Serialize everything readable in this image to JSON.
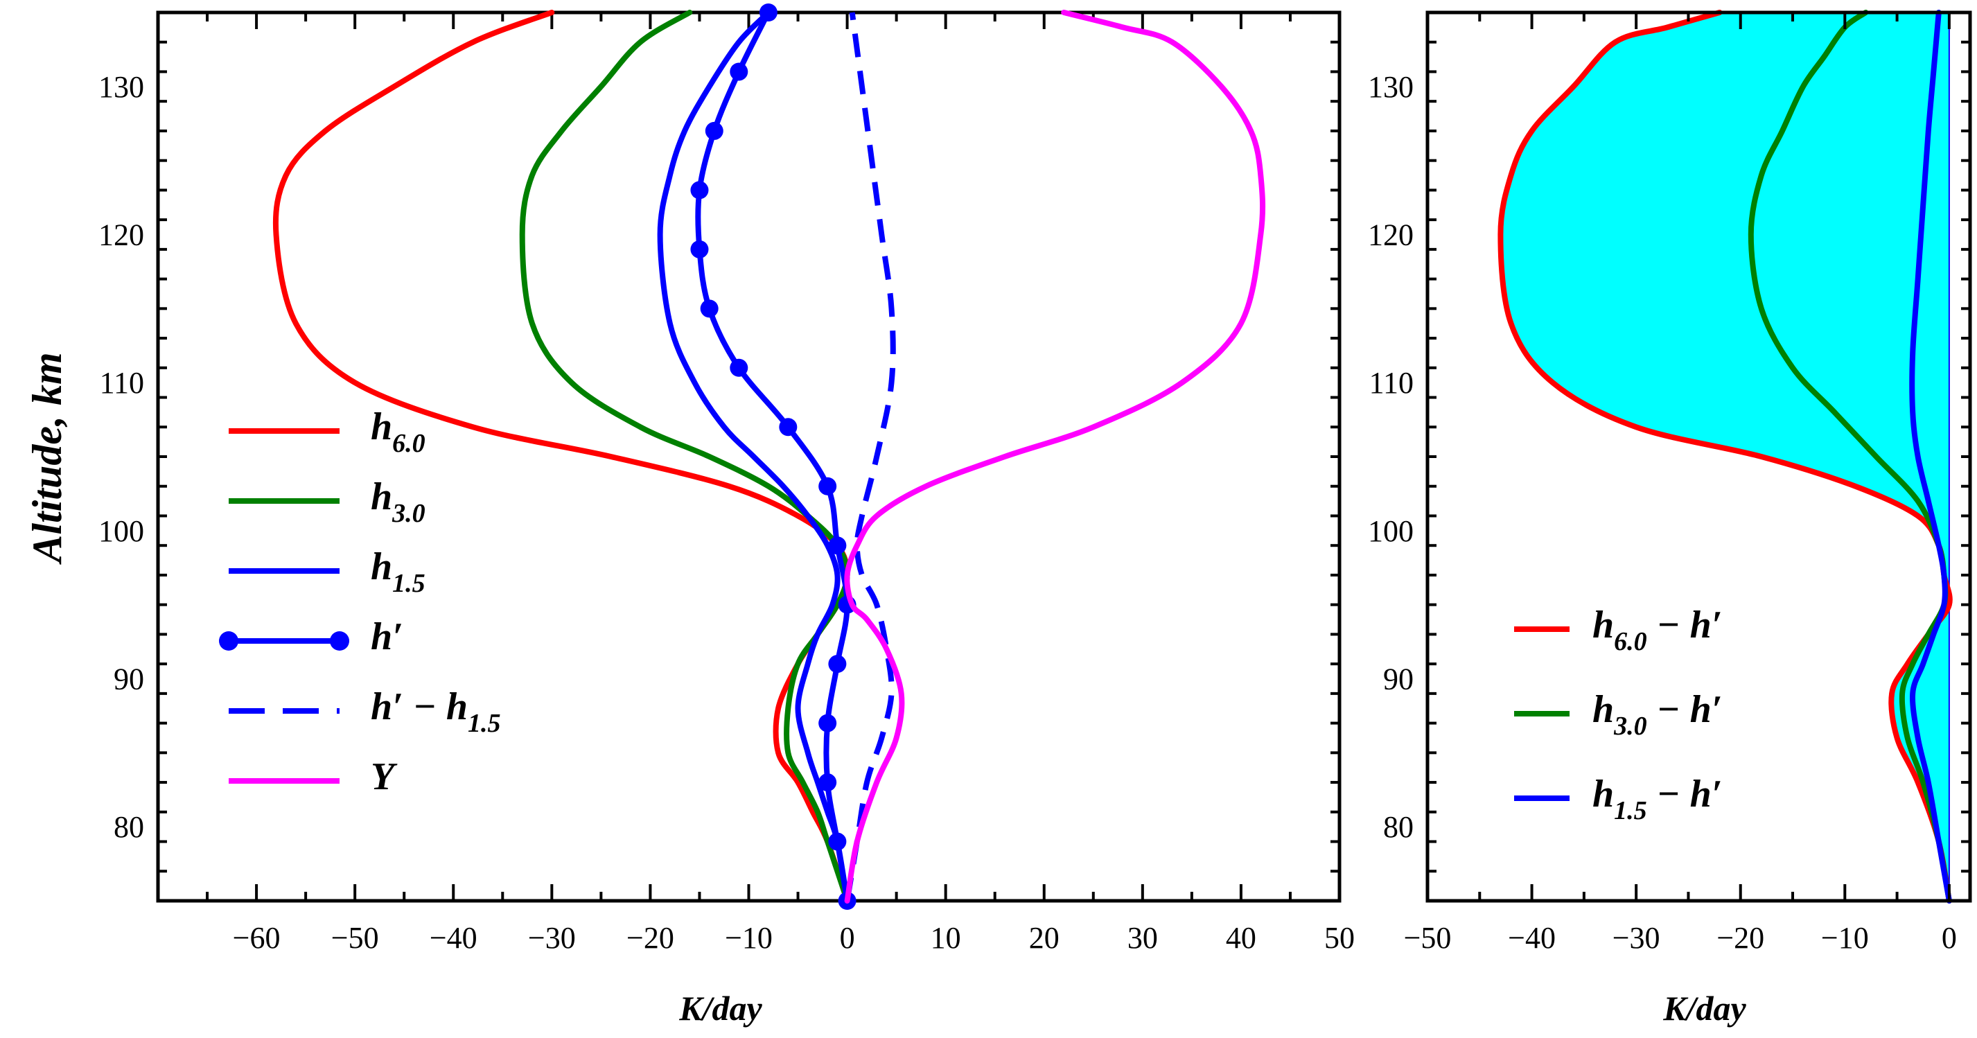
{
  "chart_data": [
    {
      "type": "line",
      "ylabel": "Altitude, km",
      "xlabel": "K/day",
      "xlim": [
        -70,
        50
      ],
      "ylim": [
        75,
        135
      ],
      "xticks": [
        -60,
        -50,
        -40,
        -30,
        -20,
        -10,
        0,
        10,
        20,
        30,
        40,
        50
      ],
      "yticks": [
        80,
        90,
        100,
        110,
        120,
        130
      ],
      "legend_position": "middle-left",
      "series": [
        {
          "name": "h",
          "sub": "6.0",
          "color": "#ff0000",
          "style": "solid",
          "x": [
            0,
            -2,
            -3.5,
            -5,
            -7,
            -7,
            -5,
            -3,
            -1,
            0,
            -1,
            -5,
            -12,
            -24,
            -38,
            -50,
            -56,
            -58,
            -57,
            -53,
            -46,
            -38,
            -30
          ],
          "y": [
            75,
            79,
            81,
            83,
            85,
            88,
            91,
            93,
            95,
            97,
            99,
            101,
            103,
            105,
            107,
            110,
            114,
            120,
            124,
            127,
            130,
            133,
            135
          ]
        },
        {
          "name": "h",
          "sub": "3.0",
          "color": "#008000",
          "style": "solid",
          "x": [
            0,
            -2,
            -3,
            -4.5,
            -6,
            -6,
            -5,
            -3,
            -1,
            0,
            -1,
            -4,
            -8,
            -14,
            -21,
            -28,
            -32,
            -33,
            -32,
            -29,
            -25,
            -21,
            -16
          ],
          "y": [
            75,
            79,
            81,
            83,
            85,
            88,
            91,
            93,
            95,
            97,
            99,
            101,
            103,
            105,
            107,
            110,
            114,
            120,
            124,
            127,
            130,
            133,
            135
          ]
        },
        {
          "name": "h",
          "sub": "1.5",
          "color": "#0000ff",
          "style": "solid",
          "x": [
            0,
            -1,
            -2,
            -3,
            -4,
            -5,
            -4,
            -3,
            -1.5,
            -1,
            -2,
            -4,
            -6.5,
            -9.5,
            -12.5,
            -15.5,
            -18,
            -19,
            -18,
            -16.5,
            -14,
            -11,
            -8
          ],
          "y": [
            75,
            79,
            81,
            83,
            85,
            88,
            91,
            93,
            95,
            97,
            99,
            101,
            103,
            105,
            107,
            110,
            114,
            120,
            124,
            127,
            130,
            133,
            135
          ]
        },
        {
          "name": "h′",
          "sub": "",
          "color": "#0000ff",
          "style": "markers",
          "x": [
            0,
            -1,
            -2,
            -2,
            -1,
            0,
            -1,
            -2,
            -6,
            -11,
            -14,
            -15,
            -15,
            -13.5,
            -11,
            -8
          ],
          "y": [
            75,
            79,
            83,
            87,
            91,
            95,
            99,
            103,
            107,
            111,
            115,
            119,
            123,
            127,
            131,
            135
          ]
        },
        {
          "name": "h′ − h",
          "sub": "1.5",
          "color": "#0000ff",
          "style": "dashed",
          "x": [
            0,
            1,
            2,
            3.5,
            4.5,
            4,
            3,
            1.5,
            1,
            1.5,
            3,
            4.5,
            4.5,
            3.5,
            2.5,
            1.5,
            0.5
          ],
          "y": [
            75,
            79,
            83,
            86,
            89,
            92,
            95,
            97,
            99,
            101,
            105,
            110,
            115,
            120,
            125,
            130,
            135
          ]
        },
        {
          "name": "Y",
          "sub": "",
          "color": "#ff00ff",
          "style": "solid",
          "x": [
            0,
            1,
            3,
            5,
            5.5,
            4,
            2,
            0.5,
            0,
            1,
            3,
            8,
            16,
            25,
            34,
            40,
            42,
            42,
            41,
            38,
            33,
            28,
            22
          ],
          "y": [
            75,
            79,
            83,
            86,
            89,
            92,
            94,
            95,
            97,
            99,
            101,
            103,
            105,
            107,
            110,
            114,
            120,
            124,
            127,
            130,
            133,
            134,
            135
          ]
        }
      ]
    },
    {
      "type": "area",
      "xlabel": "K/day",
      "xlim": [
        -50,
        2
      ],
      "ylim": [
        75,
        135
      ],
      "xticks": [
        -50,
        -40,
        -30,
        -20,
        -10,
        0
      ],
      "yticks": [
        80,
        90,
        100,
        110,
        120,
        130
      ],
      "legend_position": "bottom-left",
      "fill_color": "#00ffff",
      "series": [
        {
          "name": "h",
          "sub": "6.0",
          "suffix": " − h′",
          "color": "#ff0000",
          "x": [
            0,
            -1,
            -3,
            -5,
            -5.5,
            -4,
            -2,
            0,
            -0.5,
            -1,
            -3,
            -9,
            -18,
            -30,
            -38,
            -42,
            -43,
            -42,
            -40,
            -36,
            -32,
            -27,
            -22
          ],
          "y": [
            75,
            79,
            83,
            86,
            89,
            91,
            93,
            95,
            97,
            99,
            101,
            103,
            105,
            107,
            110,
            114,
            120,
            124,
            127,
            130,
            133,
            134,
            135
          ]
        },
        {
          "name": "h",
          "sub": "3.0",
          "suffix": " − h′",
          "color": "#008000",
          "x": [
            0,
            -1,
            -2.5,
            -4,
            -4.5,
            -3.5,
            -2,
            -0.5,
            -0.5,
            -1,
            -3,
            -7,
            -11,
            -15,
            -18,
            -19,
            -18,
            -16,
            -14,
            -12,
            -10,
            -8
          ],
          "y": [
            75,
            79,
            83,
            86,
            89,
            91,
            93,
            95,
            97,
            99,
            102,
            105,
            108,
            111,
            115,
            120,
            124,
            127,
            130,
            132,
            134,
            135
          ]
        },
        {
          "name": "h",
          "sub": "1.5",
          "suffix": " − h′",
          "color": "#0000ff",
          "x": [
            0,
            -1,
            -2,
            -3,
            -3.5,
            -2.5,
            -1.5,
            -0.5,
            -0.5,
            -1,
            -2,
            -3,
            -3.5,
            -3.5,
            -3,
            -2.5,
            -2,
            -1.5,
            -1
          ],
          "y": [
            75,
            79,
            83,
            86,
            89,
            91,
            93,
            95,
            97,
            99,
            102,
            105,
            108,
            112,
            117,
            122,
            127,
            131,
            135
          ]
        }
      ]
    }
  ]
}
